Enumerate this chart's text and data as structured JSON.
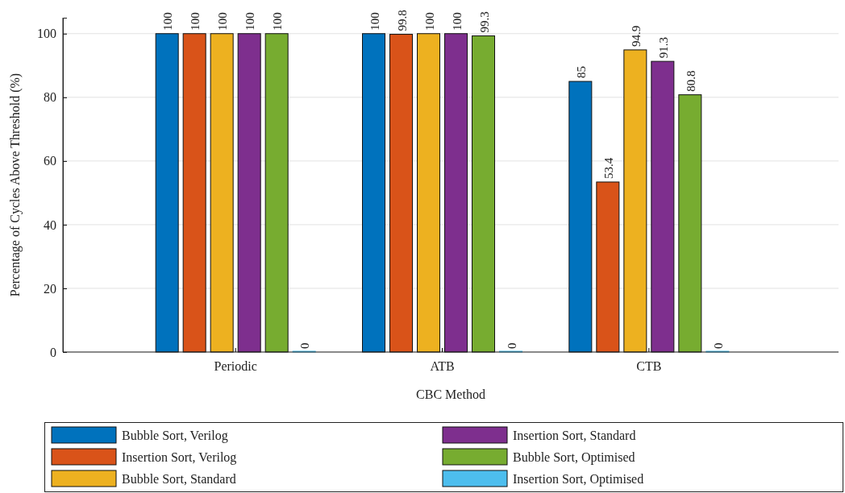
{
  "chart_data": {
    "type": "bar",
    "xlabel": "CBC Method",
    "ylabel": "Percentage of Cycles Above Threshold (%)",
    "categories": [
      "Periodic",
      "ATB",
      "CTB"
    ],
    "series": [
      {
        "name": "Bubble Sort, Verilog",
        "color": "#0072bd",
        "values": [
          100,
          100,
          85
        ]
      },
      {
        "name": "Insertion Sort, Verilog",
        "color": "#d95319",
        "values": [
          100,
          99.8,
          53.4
        ]
      },
      {
        "name": "Bubble Sort, Standard",
        "color": "#edb120",
        "values": [
          100,
          100,
          94.9
        ]
      },
      {
        "name": "Insertion Sort, Standard",
        "color": "#7e2f8e",
        "values": [
          100,
          100,
          91.3
        ]
      },
      {
        "name": "Bubble Sort, Optimised",
        "color": "#77ac30",
        "values": [
          100,
          99.3,
          80.8
        ]
      },
      {
        "name": "Insertion Sort, Optimised",
        "color": "#4dbeee",
        "values": [
          0,
          0,
          0
        ]
      }
    ],
    "ylim": [
      0,
      105
    ],
    "yticks": [
      0,
      20,
      40,
      60,
      80,
      100
    ],
    "grid": "y",
    "data_labels": true,
    "legend": "bottom"
  }
}
